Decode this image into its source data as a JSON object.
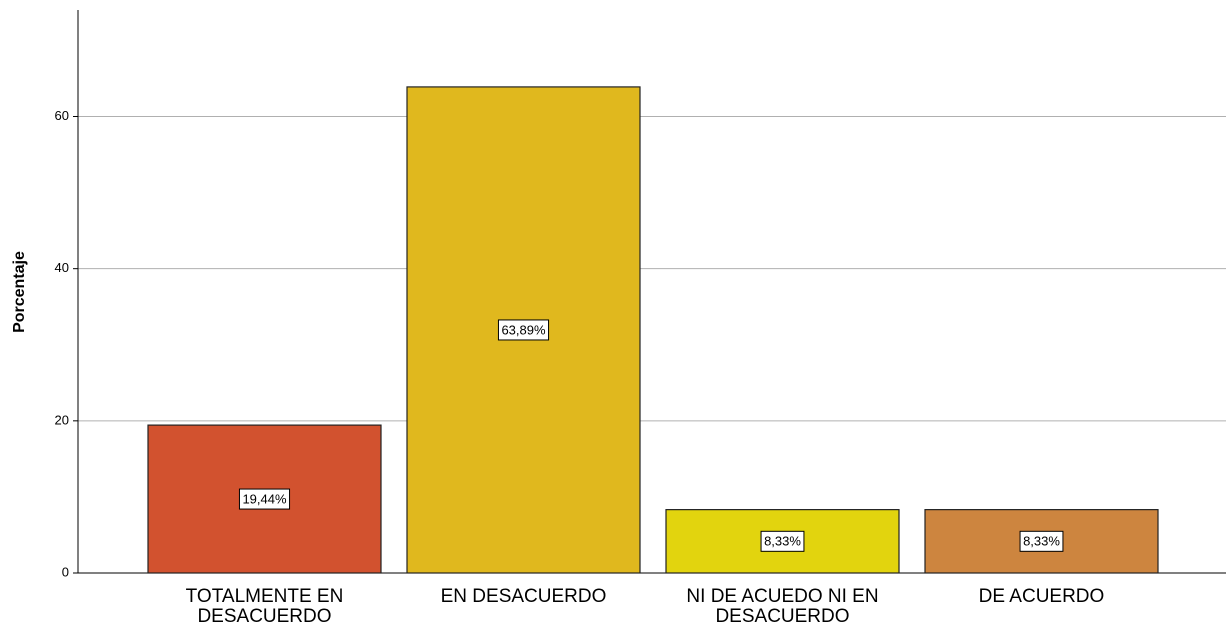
{
  "chart_data": {
    "type": "bar",
    "y_label": "Porcentaje",
    "categories": [
      "TOTALMENTE EN DESACUERDO",
      "EN DESACUERDO",
      "NI DE ACUEDO NI EN DESACUERDO",
      "DE ACUERDO"
    ],
    "values": [
      19.44,
      63.89,
      8.33,
      8.33
    ],
    "value_labels": [
      "19,44%",
      "63,89%",
      "8,33%",
      "8,33%"
    ],
    "colors": [
      "#d2522f",
      "#e0b81e",
      "#e2d40e",
      "#cd853f"
    ],
    "ylim": [
      0,
      74
    ],
    "yticks": [
      0,
      20,
      40,
      60
    ],
    "grid": true
  }
}
